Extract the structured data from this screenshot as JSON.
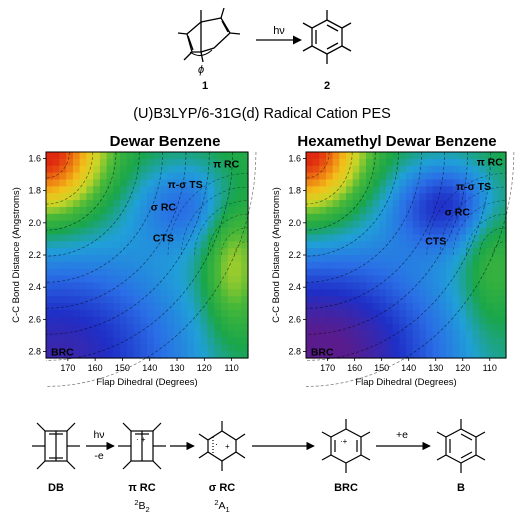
{
  "figure": {
    "main_title": "(U)B3LYP/6-31G(d) Radical Cation PES",
    "top_scheme": {
      "reactant_number": "1",
      "product_number": "2",
      "arrow_label": "hν",
      "angle_label": "ϕ"
    },
    "bottom_scheme": {
      "arrow1_top": "hν",
      "arrow1_bottom": "-e",
      "arrow4_top": "+e",
      "species": [
        {
          "label": "DB",
          "sub": "",
          "sub_sup": "",
          "sub_tail": ""
        },
        {
          "label": "π RC",
          "sub": "2",
          "sub_sup": "B",
          "sub_tail": "2"
        },
        {
          "label": "σ RC",
          "sub": "2",
          "sub_sup": "A",
          "sub_tail": "1"
        },
        {
          "label": "BRC",
          "sub": "",
          "sub_sup": "",
          "sub_tail": ""
        },
        {
          "label": "B",
          "sub": "",
          "sub_sup": "",
          "sub_tail": ""
        }
      ]
    }
  },
  "chart_data": [
    {
      "type": "heatmap",
      "title": "Dewar Benzene",
      "xlabel": "Flap Dihedral (Degrees)",
      "ylabel": "C-C Bond Distance (Angstroms)",
      "xlim": [
        178,
        104
      ],
      "ylim": [
        1.56,
        2.84
      ],
      "xticks": [
        170,
        160,
        150,
        140,
        130,
        120,
        110
      ],
      "yticks": [
        1.6,
        1.8,
        2.0,
        2.2,
        2.4,
        2.6,
        2.8
      ],
      "ytick_labels": [
        "1.6",
        "1.8",
        "2.0",
        "2.2",
        "2.4",
        "2.6",
        "2.8"
      ],
      "colorscale": [
        "#5a1c8c",
        "#1f2fc7",
        "#2a6ee6",
        "#20a0d8",
        "#1aa64a",
        "#48b838",
        "#c8d628",
        "#f2c21a",
        "#ee7a12",
        "#e02a10"
      ],
      "annotations": [
        {
          "text": "π RC",
          "x": 112,
          "y": 1.63
        },
        {
          "text": "π-σ TS",
          "x": 127,
          "y": 1.76
        },
        {
          "text": "σ RC",
          "x": 135,
          "y": 1.9
        },
        {
          "text": "CTS",
          "x": 135,
          "y": 2.09
        },
        {
          "text": "BRC",
          "x": 172,
          "y": 2.8
        }
      ]
    },
    {
      "type": "heatmap",
      "title": "Hexamethyl Dewar Benzene",
      "xlabel": "Flap Dihedral (Degrees)",
      "ylabel": "C-C Bond Distance (Angstroms)",
      "xlim": [
        178,
        104
      ],
      "ylim": [
        1.56,
        2.84
      ],
      "xticks": [
        170,
        160,
        150,
        140,
        130,
        120,
        110
      ],
      "yticks": [
        1.6,
        1.8,
        2.0,
        2.2,
        2.4,
        2.6,
        2.8
      ],
      "ytick_labels": [
        "1.6",
        "1.8",
        "2.0",
        "2.2",
        "2.4",
        "2.6",
        "2.8"
      ],
      "colorscale": [
        "#5a1c8c",
        "#1f2fc7",
        "#2a6ee6",
        "#20a0d8",
        "#1aa64a",
        "#48b838",
        "#c8d628",
        "#f2c21a",
        "#ee7a12",
        "#e02a10"
      ],
      "annotations": [
        {
          "text": "π RC",
          "x": 110,
          "y": 1.62
        },
        {
          "text": "π-σ TS",
          "x": 116,
          "y": 1.77
        },
        {
          "text": "σ RC",
          "x": 122,
          "y": 1.93
        },
        {
          "text": "CTS",
          "x": 130,
          "y": 2.11
        },
        {
          "text": "BRC",
          "x": 172,
          "y": 2.8
        }
      ]
    }
  ]
}
